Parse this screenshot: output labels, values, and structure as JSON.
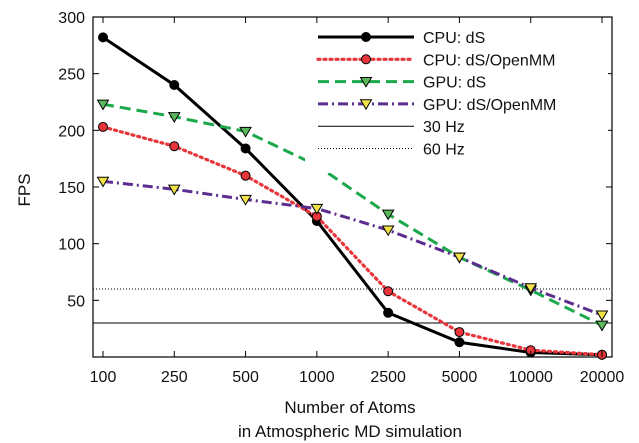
{
  "chart_data": {
    "type": "line",
    "x_scale": "categorical",
    "categories": [
      "100",
      "250",
      "500",
      "1000",
      "2500",
      "5000",
      "10000",
      "20000"
    ],
    "xlabel": [
      "Number of Atoms",
      "in Atmospheric MD simulation"
    ],
    "ylabel": "FPS",
    "ylim": [
      0,
      300
    ],
    "y_ticks": [
      50,
      100,
      150,
      200,
      250,
      300
    ],
    "grid": false,
    "legend_position": "top-right",
    "series": [
      {
        "name": "CPU: dS",
        "color": "#000000",
        "line": "solid",
        "marker": "circle",
        "marker_fill": "#000000",
        "values": [
          282,
          240,
          184,
          120,
          39,
          13,
          4,
          2
        ]
      },
      {
        "name": "CPU: dS/OpenMM",
        "color": "#e8353a",
        "line": "dotted",
        "marker": "circle",
        "marker_fill": "#e8353a",
        "values": [
          203,
          186,
          160,
          124,
          58,
          22,
          6,
          2
        ]
      },
      {
        "name": "GPU: dS",
        "color": "#1aa84a",
        "line": "dashed",
        "marker": "triangle-down",
        "marker_fill": "#5cb85c",
        "values": [
          223,
          212,
          199,
          169,
          126,
          88,
          59,
          28
        ]
      },
      {
        "name": "GPU: dS/OpenMM",
        "color": "#5b2d8e",
        "line": "dashdot",
        "marker": "triangle-down",
        "marker_fill": "#f2e24a",
        "values": [
          155,
          148,
          139,
          131,
          112,
          88,
          61,
          37
        ]
      }
    ],
    "reference_lines": [
      {
        "name": "30 Hz",
        "value": 30,
        "color": "#000000",
        "line": "solid"
      },
      {
        "name": "60 Hz",
        "value": 60,
        "color": "#000000",
        "line": "dotted"
      }
    ]
  }
}
